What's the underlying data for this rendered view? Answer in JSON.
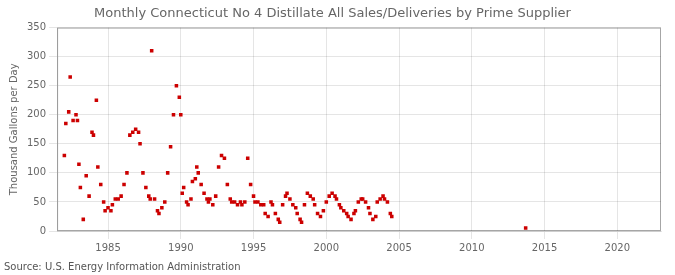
{
  "chart_data": {
    "type": "scatter",
    "title": "Monthly Connecticut No 4 Distillate All Sales/Deliveries by Prime Supplier",
    "ylabel": "Thousand Gallons per Day",
    "source": "Source: U.S. Energy Information Administration",
    "color": "#cc0000",
    "marker": "square",
    "grid": true,
    "xlim": [
      1981.5,
      2023
    ],
    "ylim": [
      0,
      350
    ],
    "xticks": [
      1985,
      1990,
      1995,
      2000,
      2005,
      2010,
      2015,
      2020
    ],
    "yticks": [
      0,
      50,
      100,
      150,
      200,
      250,
      300,
      350
    ],
    "x": [
      1982.0,
      1982.1,
      1982.3,
      1982.4,
      1982.6,
      1982.8,
      1982.9,
      1983.0,
      1983.1,
      1983.3,
      1983.5,
      1983.7,
      1983.9,
      1984.0,
      1984.2,
      1984.3,
      1984.5,
      1984.7,
      1984.8,
      1985.0,
      1985.2,
      1985.3,
      1985.5,
      1985.7,
      1985.9,
      1986.1,
      1986.3,
      1986.5,
      1986.7,
      1986.9,
      1987.1,
      1987.2,
      1987.4,
      1987.6,
      1987.8,
      1987.9,
      1988.0,
      1988.2,
      1988.4,
      1988.5,
      1988.7,
      1988.9,
      1989.1,
      1989.3,
      1989.5,
      1989.7,
      1989.9,
      1990.0,
      1990.1,
      1990.2,
      1990.4,
      1990.5,
      1990.7,
      1990.8,
      1991.0,
      1991.1,
      1991.2,
      1991.4,
      1991.6,
      1991.8,
      1991.9,
      1992.0,
      1992.2,
      1992.4,
      1992.6,
      1992.8,
      1993.0,
      1993.2,
      1993.4,
      1993.5,
      1993.7,
      1993.9,
      1994.1,
      1994.2,
      1994.4,
      1994.6,
      1994.8,
      1995.0,
      1995.1,
      1995.3,
      1995.5,
      1995.7,
      1995.8,
      1996.0,
      1996.2,
      1996.3,
      1996.5,
      1996.7,
      1996.8,
      1997.0,
      1997.2,
      1997.3,
      1997.5,
      1997.7,
      1997.9,
      1998.0,
      1998.2,
      1998.3,
      1998.5,
      1998.7,
      1998.9,
      1999.1,
      1999.2,
      1999.4,
      1999.6,
      1999.8,
      2000.0,
      2000.2,
      2000.4,
      2000.6,
      2000.7,
      2000.9,
      2001.0,
      2001.2,
      2001.4,
      2001.5,
      2001.7,
      2001.9,
      2002.0,
      2002.2,
      2002.4,
      2002.5,
      2002.7,
      2002.9,
      2003.0,
      2003.2,
      2003.4,
      2003.5,
      2003.7,
      2003.9,
      2004.0,
      2004.2,
      2004.4,
      2004.5,
      2013.7
    ],
    "values": [
      130,
      185,
      205,
      265,
      190,
      200,
      190,
      115,
      75,
      20,
      95,
      60,
      170,
      165,
      225,
      110,
      80,
      50,
      35,
      40,
      35,
      45,
      55,
      55,
      60,
      80,
      100,
      165,
      170,
      175,
      170,
      150,
      100,
      75,
      60,
      55,
      310,
      55,
      35,
      30,
      40,
      50,
      100,
      145,
      200,
      250,
      230,
      200,
      65,
      75,
      50,
      45,
      55,
      85,
      90,
      110,
      100,
      80,
      65,
      55,
      50,
      55,
      45,
      60,
      110,
      130,
      125,
      80,
      55,
      50,
      50,
      45,
      50,
      45,
      50,
      125,
      80,
      60,
      50,
      50,
      45,
      45,
      30,
      25,
      50,
      45,
      30,
      20,
      15,
      45,
      60,
      65,
      55,
      45,
      40,
      30,
      20,
      15,
      45,
      65,
      60,
      55,
      45,
      30,
      25,
      35,
      50,
      60,
      65,
      60,
      55,
      45,
      40,
      35,
      30,
      25,
      20,
      30,
      35,
      50,
      55,
      55,
      50,
      40,
      30,
      20,
      25,
      50,
      55,
      60,
      55,
      50,
      30,
      25,
      5
    ]
  }
}
